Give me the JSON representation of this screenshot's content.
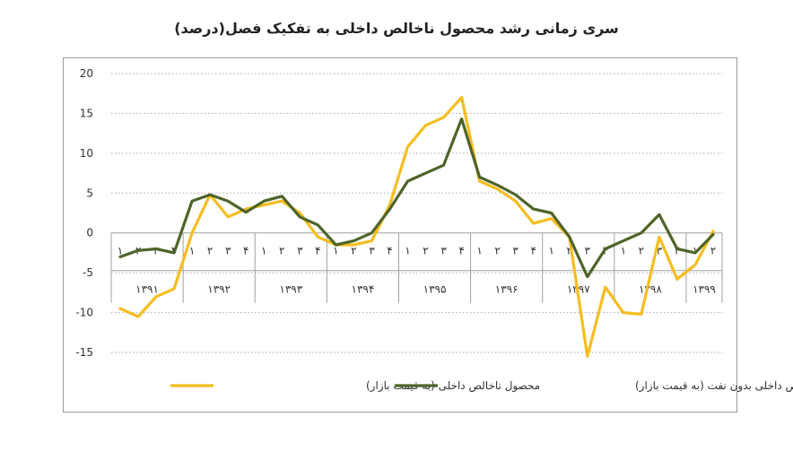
{
  "chart_data": {
    "type": "line",
    "title": "سری زمانی رشد محصول ناخالص داخلی به تفکیک فصل(درصد)",
    "ylim": [
      -15,
      20
    ],
    "yticks": [
      "20",
      "15",
      "10",
      "5",
      "0",
      "-5",
      "-10",
      "-15"
    ],
    "ytick_values": [
      20,
      15,
      10,
      5,
      0,
      -5,
      -10,
      -15
    ],
    "grid": "horizontal dotted",
    "legend_position": "bottom",
    "years": [
      {
        "label": "۱۳۹۱",
        "quarters": [
          "۱",
          "۲",
          "۳",
          "۴"
        ]
      },
      {
        "label": "۱۳۹۲",
        "quarters": [
          "۱",
          "۲",
          "۳",
          "۴"
        ]
      },
      {
        "label": "۱۳۹۳",
        "quarters": [
          "۱",
          "۲",
          "۳",
          "۴"
        ]
      },
      {
        "label": "۱۳۹۴",
        "quarters": [
          "۱",
          "۲",
          "۳",
          "۴"
        ]
      },
      {
        "label": "۱۳۹۵",
        "quarters": [
          "۱",
          "۲",
          "۳",
          "۴"
        ]
      },
      {
        "label": "۱۳۹۶",
        "quarters": [
          "۱",
          "۲",
          "۳",
          "۴"
        ]
      },
      {
        "label": "۱۳۹۷",
        "quarters": [
          "۱",
          "۲",
          "۳",
          "۴"
        ]
      },
      {
        "label": "۱۳۹۸",
        "quarters": [
          "۱",
          "۲",
          "۳",
          "۴"
        ]
      },
      {
        "label": "۱۳۹۹",
        "quarters": [
          "۱",
          "۲"
        ]
      }
    ],
    "series": [
      {
        "name": "محصول ناخالص داخلی (به قیمت بازار)",
        "color": "#f5bd1f",
        "values": [
          -9.5,
          -10.5,
          -8.0,
          -7.0,
          0.0,
          4.8,
          2.0,
          3.0,
          3.5,
          4.0,
          2.5,
          -0.5,
          -1.5,
          -1.5,
          -1.0,
          3.5,
          10.8,
          13.5,
          14.5,
          17.0,
          6.5,
          5.5,
          4.0,
          1.2,
          1.8,
          -0.5,
          -15.5,
          -6.8,
          -10.0,
          -10.2,
          -0.5,
          -5.8,
          -4.0,
          0.2
        ]
      },
      {
        "name": "محصول ناخالص داخلی بدون نفت (به قیمت بازار)",
        "color": "#4e6428",
        "values": [
          -3.0,
          -2.2,
          -2.0,
          -2.5,
          4.0,
          4.8,
          4.0,
          2.6,
          4.0,
          4.6,
          2.0,
          1.0,
          -1.5,
          -1.0,
          0.0,
          3.0,
          6.5,
          7.5,
          8.5,
          14.3,
          7.0,
          6.0,
          4.8,
          3.0,
          2.5,
          -0.5,
          -5.5,
          -2.0,
          -1.0,
          0.0,
          2.3,
          -2.0,
          -2.5,
          -0.2
        ]
      }
    ]
  }
}
